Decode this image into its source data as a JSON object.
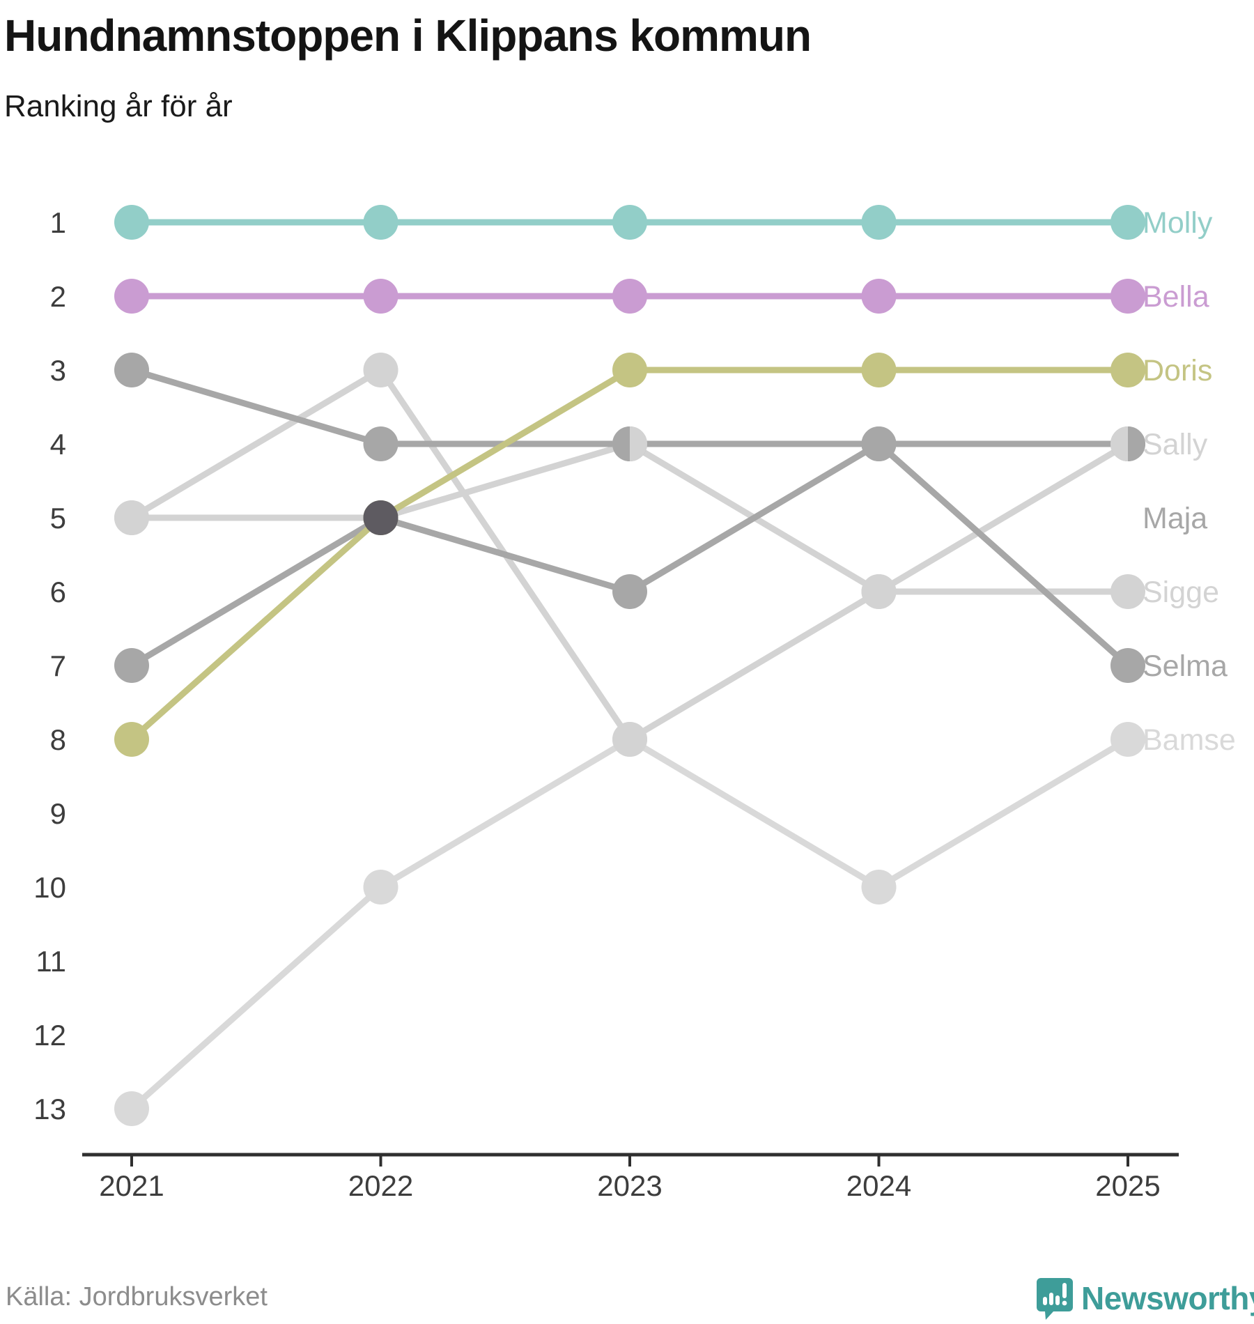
{
  "header": {
    "title": "Hundnamnstoppen i Klippans kommun",
    "subtitle": "Ranking år för år"
  },
  "chart_data": {
    "type": "line",
    "variant": "bump-ranking",
    "title": "Hundnamnstoppen i Klippans kommun",
    "subtitle": "Ranking år för år",
    "categories": [
      "2021",
      "2022",
      "2023",
      "2024",
      "2025"
    ],
    "y_axis": {
      "ticks": [
        "1",
        "2",
        "3",
        "4",
        "5",
        "6",
        "7",
        "8",
        "9",
        "10",
        "11",
        "12",
        "13"
      ],
      "range": [
        1,
        13
      ],
      "inverted": true
    },
    "grid": false,
    "legend_position": "right-end-labels",
    "axis_color": "#2f2f2f",
    "tick_label_color": "#3d3d3d",
    "series": [
      {
        "name": "Molly",
        "color": "#92cec8",
        "values": [
          1,
          1,
          1,
          1,
          1
        ],
        "label_rank": 1
      },
      {
        "name": "Bella",
        "color": "#ca9cd2",
        "values": [
          2,
          2,
          2,
          2,
          2
        ],
        "label_rank": 2
      },
      {
        "name": "Doris",
        "color": "#c4c483",
        "values": [
          8,
          5,
          3,
          3,
          3
        ],
        "label_rank": 3
      },
      {
        "name": "Sally",
        "color": "#d3d3d3",
        "values": [
          5,
          5,
          4,
          6,
          4
        ],
        "label_rank": 4
      },
      {
        "name": "Maja",
        "color": "#a7a7a7",
        "values": [
          3,
          4,
          4,
          4,
          4
        ],
        "label_rank": 5
      },
      {
        "name": "Sigge",
        "color": "#d3d3d3",
        "values": [
          5,
          3,
          8,
          6,
          6
        ],
        "label_rank": 6
      },
      {
        "name": "Selma",
        "color": "#a7a7a7",
        "values": [
          7,
          5,
          6,
          4,
          7
        ],
        "label_rank": 7
      },
      {
        "name": "Bamse",
        "color": "#d9d9d9",
        "values": [
          13,
          10,
          8,
          10,
          8
        ],
        "label_rank": 8
      }
    ],
    "draw_order": [
      "Bamse",
      "Sally",
      "Sigge",
      "Maja",
      "Selma",
      "Doris",
      "Bella",
      "Molly"
    ],
    "tie_markers": [
      {
        "year": "2022",
        "rank": 5,
        "style": "solid",
        "color": "#5e5b61"
      },
      {
        "year": "2023",
        "rank": 4,
        "style": "split",
        "left": "#a7a7a7",
        "right": "#d3d3d3"
      },
      {
        "year": "2025",
        "rank": 4,
        "style": "split",
        "left": "#d3d3d3",
        "right": "#a7a7a7"
      }
    ]
  },
  "footer": {
    "source": "Källa: Jordbruksverket",
    "brand": "Newsworthy",
    "brand_color": "#3e9d99"
  }
}
